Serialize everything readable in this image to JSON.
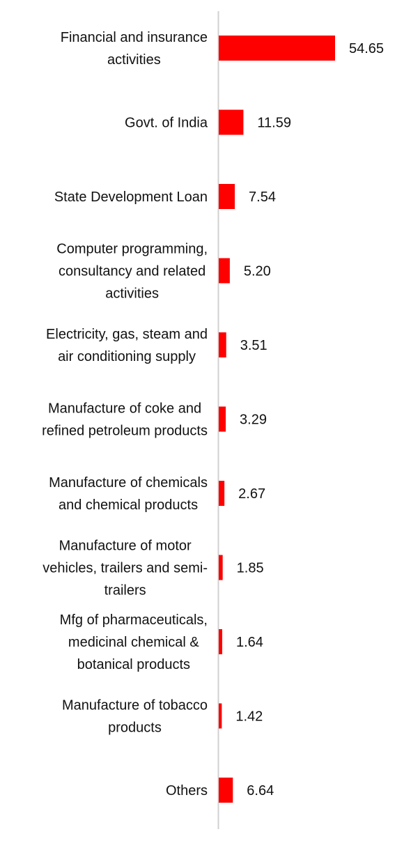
{
  "chart_data": {
    "type": "bar",
    "orientation": "horizontal",
    "categories": [
      [
        "Financial and insurance",
        "activities"
      ],
      [
        "Govt. of India"
      ],
      [
        "State Development Loan"
      ],
      [
        "Computer programming,",
        "consultancy and related",
        "activities"
      ],
      [
        "Electricity, gas, steam and",
        "air conditioning supply"
      ],
      [
        "Manufacture of coke and",
        "refined petroleum products"
      ],
      [
        "Manufacture of chemicals",
        "and chemical products"
      ],
      [
        "Manufacture of motor",
        "vehicles, trailers and semi-",
        "trailers"
      ],
      [
        "Mfg of pharmaceuticals,",
        "medicinal chemical &",
        "botanical products"
      ],
      [
        "Manufacture of tobacco",
        "products"
      ],
      [
        "Others"
      ]
    ],
    "values": [
      54.65,
      11.59,
      7.54,
      5.2,
      3.51,
      3.29,
      2.67,
      1.85,
      1.64,
      1.42,
      6.64
    ],
    "value_labels": [
      "54.65",
      "11.59",
      "7.54",
      "5.20",
      "3.51",
      "3.29",
      "2.67",
      "1.85",
      "1.64",
      "1.42",
      "6.64"
    ],
    "bar_color": "#ff0000",
    "axis_color": "#d0d0d0",
    "grid": false,
    "legend": "none",
    "title": "",
    "xlabel": "",
    "ylabel": ""
  }
}
